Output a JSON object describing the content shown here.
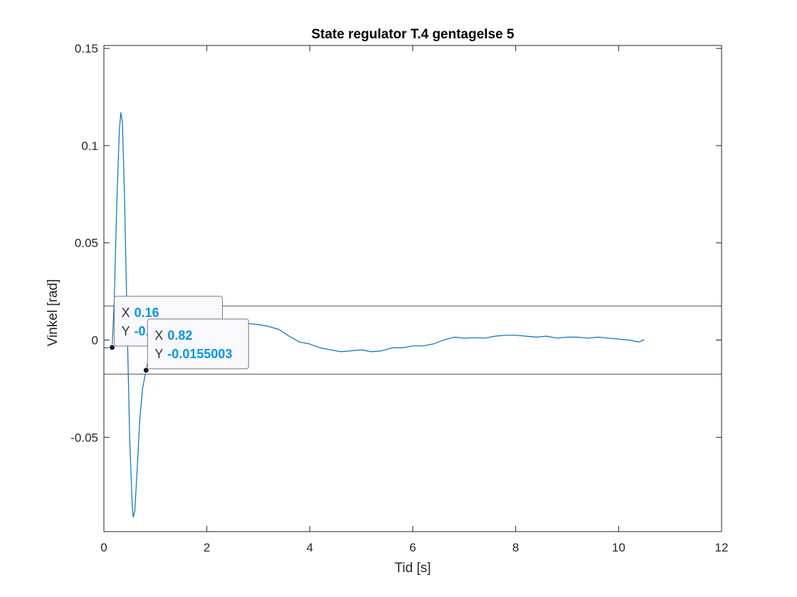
{
  "chart_data": {
    "type": "line",
    "title": "State regulator T.4 gentagelse 5",
    "xlabel": "Tid [s]",
    "ylabel": "Vinkel [rad]",
    "xlim": [
      0,
      12
    ],
    "ylim": [
      -0.0985,
      0.1515
    ],
    "xticks": [
      0,
      2,
      4,
      6,
      8,
      10,
      12
    ],
    "xtick_labels": [
      "0",
      "2",
      "4",
      "6",
      "8",
      "10",
      "12"
    ],
    "yticks": [
      -0.05,
      0,
      0.05,
      0.1,
      0.15
    ],
    "ytick_labels": [
      "-0.05",
      "0",
      "0.05",
      "0.1",
      "0.15"
    ],
    "grid": false,
    "box": true,
    "colors": {
      "series": "#0072BD",
      "reference": "#555555",
      "tip_value": "#0096E6",
      "axis": "#262626"
    },
    "reference_lines": [
      0.0175,
      -0.0175
    ],
    "series": [
      {
        "x": [
          0,
          0.1,
          0.16,
          0.2,
          0.25,
          0.3,
          0.33,
          0.36,
          0.4,
          0.45,
          0.5,
          0.55,
          0.57,
          0.6,
          0.65,
          0.7,
          0.75,
          0.82,
          0.9,
          1.0,
          1.1,
          1.2,
          1.4,
          1.6,
          1.8,
          2.0,
          2.2,
          2.4,
          2.6,
          2.8,
          3.0,
          3.2,
          3.4,
          3.6,
          3.8,
          4.0,
          4.2,
          4.4,
          4.6,
          4.8,
          5.0,
          5.2,
          5.4,
          5.6,
          5.8,
          6.0,
          6.2,
          6.4,
          6.6,
          6.8,
          7.0,
          7.2,
          7.4,
          7.6,
          7.8,
          8.0,
          8.2,
          8.4,
          8.6,
          8.8,
          9.0,
          9.2,
          9.4,
          9.6,
          9.8,
          10.0,
          10.2,
          10.4,
          10.5
        ],
        "y": [
          -0.004,
          -0.004,
          -0.0038,
          0.02,
          0.07,
          0.108,
          0.117,
          0.112,
          0.075,
          0.01,
          -0.05,
          -0.085,
          -0.091,
          -0.088,
          -0.065,
          -0.04,
          -0.025,
          -0.0155,
          -0.005,
          0.002,
          0.006,
          0.008,
          0.009,
          0.0095,
          0.0098,
          0.0097,
          0.0095,
          0.0093,
          0.009,
          0.0085,
          0.008,
          0.007,
          0.0055,
          0.002,
          -0.001,
          -0.002,
          -0.004,
          -0.005,
          -0.006,
          -0.0055,
          -0.005,
          -0.006,
          -0.0055,
          -0.004,
          -0.004,
          -0.003,
          -0.003,
          -0.002,
          0.0,
          0.0015,
          0.001,
          0.0012,
          0.001,
          0.002,
          0.0025,
          0.0025,
          0.002,
          0.0015,
          0.002,
          0.001,
          0.0015,
          0.0015,
          0.001,
          0.0015,
          0.001,
          0.0005,
          0.0,
          -0.001,
          0.0003
        ]
      }
    ],
    "datatips": [
      {
        "x_label": "X",
        "y_label": "Y",
        "x_value": "0.16",
        "y_value": "-0.",
        "point": [
          0.16,
          -0.0038
        ]
      },
      {
        "x_label": "X",
        "y_label": "Y",
        "x_value": "0.82",
        "y_value": "-0.0155003",
        "point": [
          0.82,
          -0.0155003
        ]
      }
    ]
  }
}
